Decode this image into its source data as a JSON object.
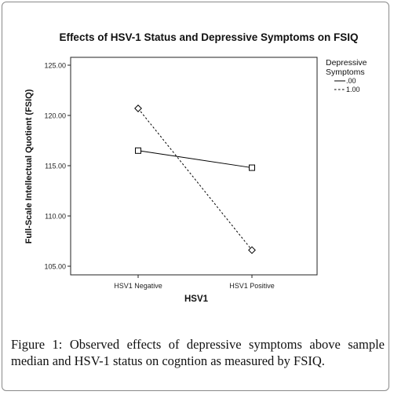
{
  "chart_data": {
    "type": "line",
    "title": "Effects of HSV-1 Status and Depressive Symptoms on FSIQ",
    "xlabel": "HSV1",
    "ylabel": "Full-Scale Intellectual Quotient (FSIQ)",
    "categories": [
      "HSV1 Negative",
      "HSV1 Positive"
    ],
    "ylim": [
      105,
      125
    ],
    "yticks": [
      105,
      110,
      115,
      120,
      125
    ],
    "ytick_labels": [
      "105.00",
      "110.00",
      "115.00",
      "120.00",
      "125.00"
    ],
    "grid": false,
    "legend": {
      "title": "Depressive Symptoms",
      "title_lines": [
        "Depressive",
        "Symptoms"
      ],
      "placement": "top-right"
    },
    "series": [
      {
        "name": ".00",
        "values": [
          116.5,
          114.8
        ],
        "style": "solid",
        "marker": "square",
        "color": "#000000"
      },
      {
        "name": "1.00",
        "values": [
          120.7,
          106.6
        ],
        "style": "dashed",
        "marker": "diamond",
        "color": "#000000"
      }
    ]
  },
  "caption": {
    "label": "Figure 1:",
    "text": " Observed effects of depressive symptoms above sample median and HSV-1 status on cogntion as measured by FSIQ."
  }
}
